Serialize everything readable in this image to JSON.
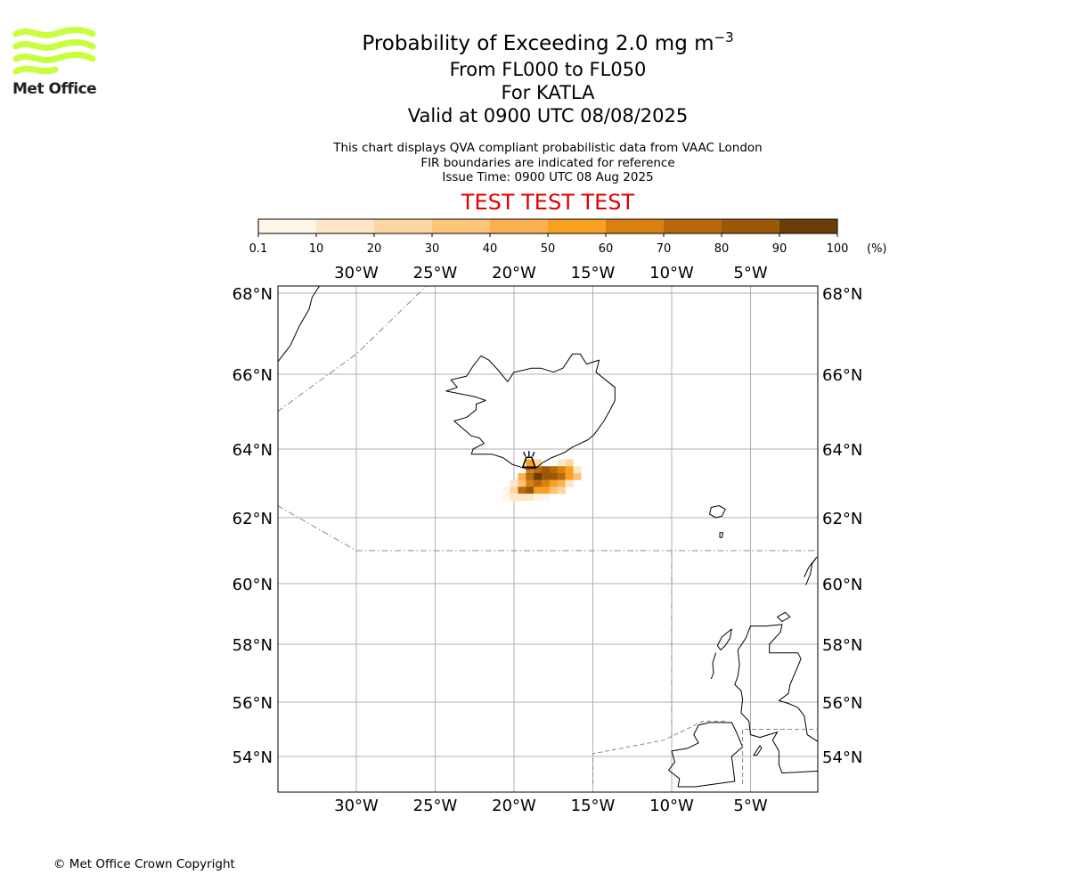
{
  "logo": {
    "text": "Met Office",
    "color": "#c8ff3c"
  },
  "title": {
    "line1": "Probability of Exceeding 2.0 mg m",
    "line1_sup": "−3",
    "line2": "From FL000 to FL050",
    "line3": "For KATLA",
    "line4": "Valid at 0900 UTC 08/08/2025"
  },
  "info": {
    "line1": "This chart displays QVA compliant probabilistic data from VAAC London",
    "line2": "FIR boundaries are indicated for reference",
    "line3": "Issue Time: 0900 UTC 08 Aug 2025"
  },
  "test_banner": "TEST TEST TEST",
  "copyright": "© Met Office Crown Copyright",
  "chart_data": {
    "type": "heatmap",
    "colorbar": {
      "ticks": [
        "0.1",
        "10",
        "20",
        "30",
        "40",
        "50",
        "60",
        "70",
        "80",
        "90",
        "100"
      ],
      "unit": "(%)",
      "colors": [
        "#fff6e8",
        "#fde7c6",
        "#fdd7a2",
        "#fdc47a",
        "#fbb052",
        "#f8a020",
        "#d98010",
        "#b86a0a",
        "#9a5808",
        "#6b3e08"
      ]
    },
    "lon_ticks": [
      "30°W",
      "25°W",
      "20°W",
      "15°W",
      "10°W",
      "5°W"
    ],
    "lon_values": [
      -30,
      -25,
      -20,
      -15,
      -10,
      -5
    ],
    "lat_ticks": [
      "68°N",
      "66°N",
      "64°N",
      "62°N",
      "60°N",
      "58°N",
      "56°N",
      "54°N"
    ],
    "lat_values": [
      68,
      66,
      64,
      62,
      60,
      58,
      56,
      54
    ],
    "lon_range": [
      -35,
      -0.8
    ],
    "lat_range": [
      53,
      68.2
    ],
    "volcano": {
      "name": "KATLA",
      "lon": -19.05,
      "lat": 63.63
    },
    "probability_cells": [
      {
        "lon": -19.0,
        "lat": 63.6,
        "p": 55
      },
      {
        "lon": -18.5,
        "lat": 63.6,
        "p": 25
      },
      {
        "lon": -17.0,
        "lat": 63.6,
        "p": 15
      },
      {
        "lon": -16.5,
        "lat": 63.6,
        "p": 25
      },
      {
        "lon": -19.0,
        "lat": 63.4,
        "p": 65
      },
      {
        "lon": -18.5,
        "lat": 63.4,
        "p": 75
      },
      {
        "lon": -18.0,
        "lat": 63.4,
        "p": 85
      },
      {
        "lon": -17.5,
        "lat": 63.4,
        "p": 75
      },
      {
        "lon": -17.0,
        "lat": 63.4,
        "p": 65
      },
      {
        "lon": -16.5,
        "lat": 63.4,
        "p": 55
      },
      {
        "lon": -16.0,
        "lat": 63.4,
        "p": 15
      },
      {
        "lon": -19.5,
        "lat": 63.2,
        "p": 45
      },
      {
        "lon": -19.0,
        "lat": 63.2,
        "p": 75
      },
      {
        "lon": -18.5,
        "lat": 63.2,
        "p": 95
      },
      {
        "lon": -18.0,
        "lat": 63.2,
        "p": 85
      },
      {
        "lon": -17.5,
        "lat": 63.2,
        "p": 85
      },
      {
        "lon": -17.0,
        "lat": 63.2,
        "p": 75
      },
      {
        "lon": -16.5,
        "lat": 63.2,
        "p": 55
      },
      {
        "lon": -16.0,
        "lat": 63.2,
        "p": 35
      },
      {
        "lon": -20.0,
        "lat": 63.0,
        "p": 15
      },
      {
        "lon": -19.5,
        "lat": 63.0,
        "p": 35
      },
      {
        "lon": -19.0,
        "lat": 63.0,
        "p": 65
      },
      {
        "lon": -18.5,
        "lat": 63.0,
        "p": 75
      },
      {
        "lon": -18.0,
        "lat": 63.0,
        "p": 65
      },
      {
        "lon": -17.5,
        "lat": 63.0,
        "p": 55
      },
      {
        "lon": -17.0,
        "lat": 63.0,
        "p": 45
      },
      {
        "lon": -16.5,
        "lat": 63.0,
        "p": 15
      },
      {
        "lon": -20.5,
        "lat": 62.8,
        "p": 5
      },
      {
        "lon": -20.0,
        "lat": 62.8,
        "p": 25
      },
      {
        "lon": -19.5,
        "lat": 62.8,
        "p": 75
      },
      {
        "lon": -19.0,
        "lat": 62.8,
        "p": 85
      },
      {
        "lon": -18.5,
        "lat": 62.8,
        "p": 55
      },
      {
        "lon": -18.0,
        "lat": 62.8,
        "p": 55
      },
      {
        "lon": -17.5,
        "lat": 62.8,
        "p": 35
      },
      {
        "lon": -17.0,
        "lat": 62.8,
        "p": 25
      },
      {
        "lon": -20.5,
        "lat": 62.6,
        "p": 5
      },
      {
        "lon": -20.0,
        "lat": 62.6,
        "p": 15
      },
      {
        "lon": -19.5,
        "lat": 62.6,
        "p": 15
      },
      {
        "lon": -19.0,
        "lat": 62.6,
        "p": 15
      },
      {
        "lon": -18.5,
        "lat": 62.6,
        "p": 5
      },
      {
        "lon": -18.0,
        "lat": 62.6,
        "p": 5
      }
    ],
    "coastlines": [
      {
        "name": "iceland",
        "closed": true,
        "points": [
          [
            -22.0,
            63.85
          ],
          [
            -22.7,
            63.85
          ],
          [
            -22.6,
            64.0
          ],
          [
            -21.9,
            64.15
          ],
          [
            -22.2,
            64.3
          ],
          [
            -22.7,
            64.35
          ],
          [
            -23.8,
            64.75
          ],
          [
            -23.0,
            64.85
          ],
          [
            -22.4,
            65.05
          ],
          [
            -22.4,
            65.2
          ],
          [
            -21.8,
            65.3
          ],
          [
            -22.5,
            65.4
          ],
          [
            -24.3,
            65.55
          ],
          [
            -23.6,
            65.65
          ],
          [
            -24.0,
            65.85
          ],
          [
            -23.0,
            65.95
          ],
          [
            -22.6,
            66.2
          ],
          [
            -22.1,
            66.45
          ],
          [
            -21.6,
            66.35
          ],
          [
            -21.0,
            66.1
          ],
          [
            -20.4,
            65.8
          ],
          [
            -20.0,
            66.05
          ],
          [
            -19.4,
            66.1
          ],
          [
            -18.9,
            66.15
          ],
          [
            -18.3,
            66.15
          ],
          [
            -17.5,
            66.05
          ],
          [
            -16.9,
            66.15
          ],
          [
            -16.3,
            66.5
          ],
          [
            -15.8,
            66.5
          ],
          [
            -15.4,
            66.25
          ],
          [
            -14.6,
            66.35
          ],
          [
            -14.8,
            66.05
          ],
          [
            -14.2,
            65.85
          ],
          [
            -13.6,
            65.65
          ],
          [
            -13.6,
            65.3
          ],
          [
            -13.9,
            65.05
          ],
          [
            -14.3,
            64.75
          ],
          [
            -14.9,
            64.4
          ],
          [
            -15.3,
            64.25
          ],
          [
            -16.3,
            64.05
          ],
          [
            -16.8,
            63.9
          ],
          [
            -17.6,
            63.75
          ],
          [
            -18.2,
            63.6
          ],
          [
            -18.6,
            63.45
          ],
          [
            -19.2,
            63.42
          ],
          [
            -20.1,
            63.55
          ],
          [
            -20.7,
            63.75
          ],
          [
            -21.4,
            63.85
          ]
        ]
      },
      {
        "name": "greenland",
        "closed": false,
        "points": [
          [
            -35,
            66.3
          ],
          [
            -34.6,
            66.5
          ],
          [
            -34.2,
            66.7
          ],
          [
            -33.6,
            67.2
          ],
          [
            -33.0,
            67.6
          ],
          [
            -32.8,
            67.9
          ],
          [
            -32.3,
            68.2
          ]
        ]
      },
      {
        "name": "faroe",
        "closed": true,
        "points": [
          [
            -7.5,
            62.3
          ],
          [
            -7.0,
            62.35
          ],
          [
            -6.6,
            62.25
          ],
          [
            -6.8,
            62.05
          ],
          [
            -7.2,
            62.0
          ],
          [
            -7.6,
            62.1
          ]
        ]
      },
      {
        "name": "faroe2",
        "closed": true,
        "points": [
          [
            -6.95,
            61.55
          ],
          [
            -6.75,
            61.55
          ],
          [
            -6.8,
            61.4
          ],
          [
            -6.95,
            61.4
          ]
        ]
      },
      {
        "name": "shetland",
        "closed": false,
        "points": [
          [
            -1.5,
            59.95
          ],
          [
            -1.2,
            60.3
          ],
          [
            -1.1,
            60.6
          ],
          [
            -0.8,
            60.8
          ],
          [
            -1.3,
            60.5
          ],
          [
            -1.6,
            60.2
          ]
        ]
      },
      {
        "name": "orkney",
        "closed": true,
        "points": [
          [
            -3.3,
            58.9
          ],
          [
            -2.8,
            59.05
          ],
          [
            -2.5,
            58.9
          ],
          [
            -3.0,
            58.75
          ]
        ]
      },
      {
        "name": "lewis",
        "closed": true,
        "points": [
          [
            -6.2,
            58.5
          ],
          [
            -6.8,
            58.25
          ],
          [
            -7.1,
            57.95
          ],
          [
            -6.9,
            57.8
          ],
          [
            -6.6,
            57.95
          ],
          [
            -6.3,
            58.2
          ]
        ]
      },
      {
        "name": "uists",
        "closed": false,
        "points": [
          [
            -7.2,
            57.7
          ],
          [
            -7.4,
            57.35
          ],
          [
            -7.35,
            57.0
          ],
          [
            -7.5,
            56.8
          ]
        ]
      },
      {
        "name": "scotland",
        "closed": true,
        "points": [
          [
            -5.0,
            58.6
          ],
          [
            -4.0,
            58.6
          ],
          [
            -3.0,
            58.65
          ],
          [
            -3.1,
            58.4
          ],
          [
            -3.8,
            58.0
          ],
          [
            -3.8,
            57.7
          ],
          [
            -2.0,
            57.7
          ],
          [
            -1.8,
            57.5
          ],
          [
            -2.1,
            57.1
          ],
          [
            -2.5,
            56.6
          ],
          [
            -2.6,
            56.3
          ],
          [
            -3.2,
            56.05
          ],
          [
            -2.6,
            55.95
          ],
          [
            -2.0,
            55.8
          ],
          [
            -1.6,
            55.5
          ],
          [
            -1.4,
            54.8
          ],
          [
            -0.6,
            54.5
          ],
          [
            -0.1,
            54.1
          ],
          [
            0.1,
            53.5
          ],
          [
            -3.0,
            53.4
          ],
          [
            -3.2,
            53.7
          ],
          [
            -3.2,
            54.2
          ],
          [
            -3.6,
            54.6
          ],
          [
            -3.3,
            54.9
          ],
          [
            -4.4,
            54.7
          ],
          [
            -5.0,
            54.8
          ],
          [
            -5.1,
            55.3
          ],
          [
            -5.6,
            55.6
          ],
          [
            -5.5,
            56.1
          ],
          [
            -5.6,
            56.4
          ],
          [
            -6.0,
            56.6
          ],
          [
            -5.8,
            56.9
          ],
          [
            -5.7,
            57.3
          ],
          [
            -5.8,
            57.8
          ],
          [
            -5.3,
            58.2
          ]
        ]
      },
      {
        "name": "ireland",
        "closed": true,
        "points": [
          [
            -6.0,
            53.1
          ],
          [
            -6.1,
            53.6
          ],
          [
            -6.2,
            54.0
          ],
          [
            -5.5,
            54.35
          ],
          [
            -5.9,
            54.9
          ],
          [
            -6.2,
            55.25
          ],
          [
            -7.0,
            55.25
          ],
          [
            -7.6,
            55.25
          ],
          [
            -8.3,
            55.15
          ],
          [
            -8.6,
            54.8
          ],
          [
            -8.3,
            54.5
          ],
          [
            -9.0,
            54.3
          ],
          [
            -10.0,
            54.2
          ],
          [
            -9.8,
            53.8
          ],
          [
            -10.2,
            53.5
          ],
          [
            -9.5,
            53.2
          ],
          [
            -9.6,
            52.9
          ],
          [
            -8.5,
            52.9
          ]
        ]
      },
      {
        "name": "isle-of-man",
        "closed": true,
        "points": [
          [
            -4.8,
            54.05
          ],
          [
            -4.4,
            54.4
          ],
          [
            -4.3,
            54.3
          ],
          [
            -4.6,
            54.05
          ]
        ]
      }
    ],
    "fir_lines": [
      {
        "style": "dashdot",
        "points": [
          [
            -35,
            65.0
          ],
          [
            -30,
            66.5
          ],
          [
            -25.5,
            68.2
          ]
        ]
      },
      {
        "style": "dashdot",
        "points": [
          [
            -35,
            62.35
          ],
          [
            -30,
            61.0
          ],
          [
            -10,
            61.0
          ],
          [
            -0.8,
            61.0
          ]
        ]
      },
      {
        "style": "dashdot",
        "points": [
          [
            -10,
            61.0
          ],
          [
            -10,
            54.6
          ]
        ]
      },
      {
        "style": "dashed",
        "points": [
          [
            -15,
            53.0
          ],
          [
            -15,
            54.1
          ],
          [
            -10.5,
            54.6
          ],
          [
            -8.0,
            55.3
          ],
          [
            -6.5,
            55.3
          ]
        ]
      },
      {
        "style": "dashed",
        "points": [
          [
            -5.5,
            53.0
          ],
          [
            -5.5,
            55.0
          ],
          [
            -0.8,
            55.0
          ]
        ]
      }
    ]
  }
}
